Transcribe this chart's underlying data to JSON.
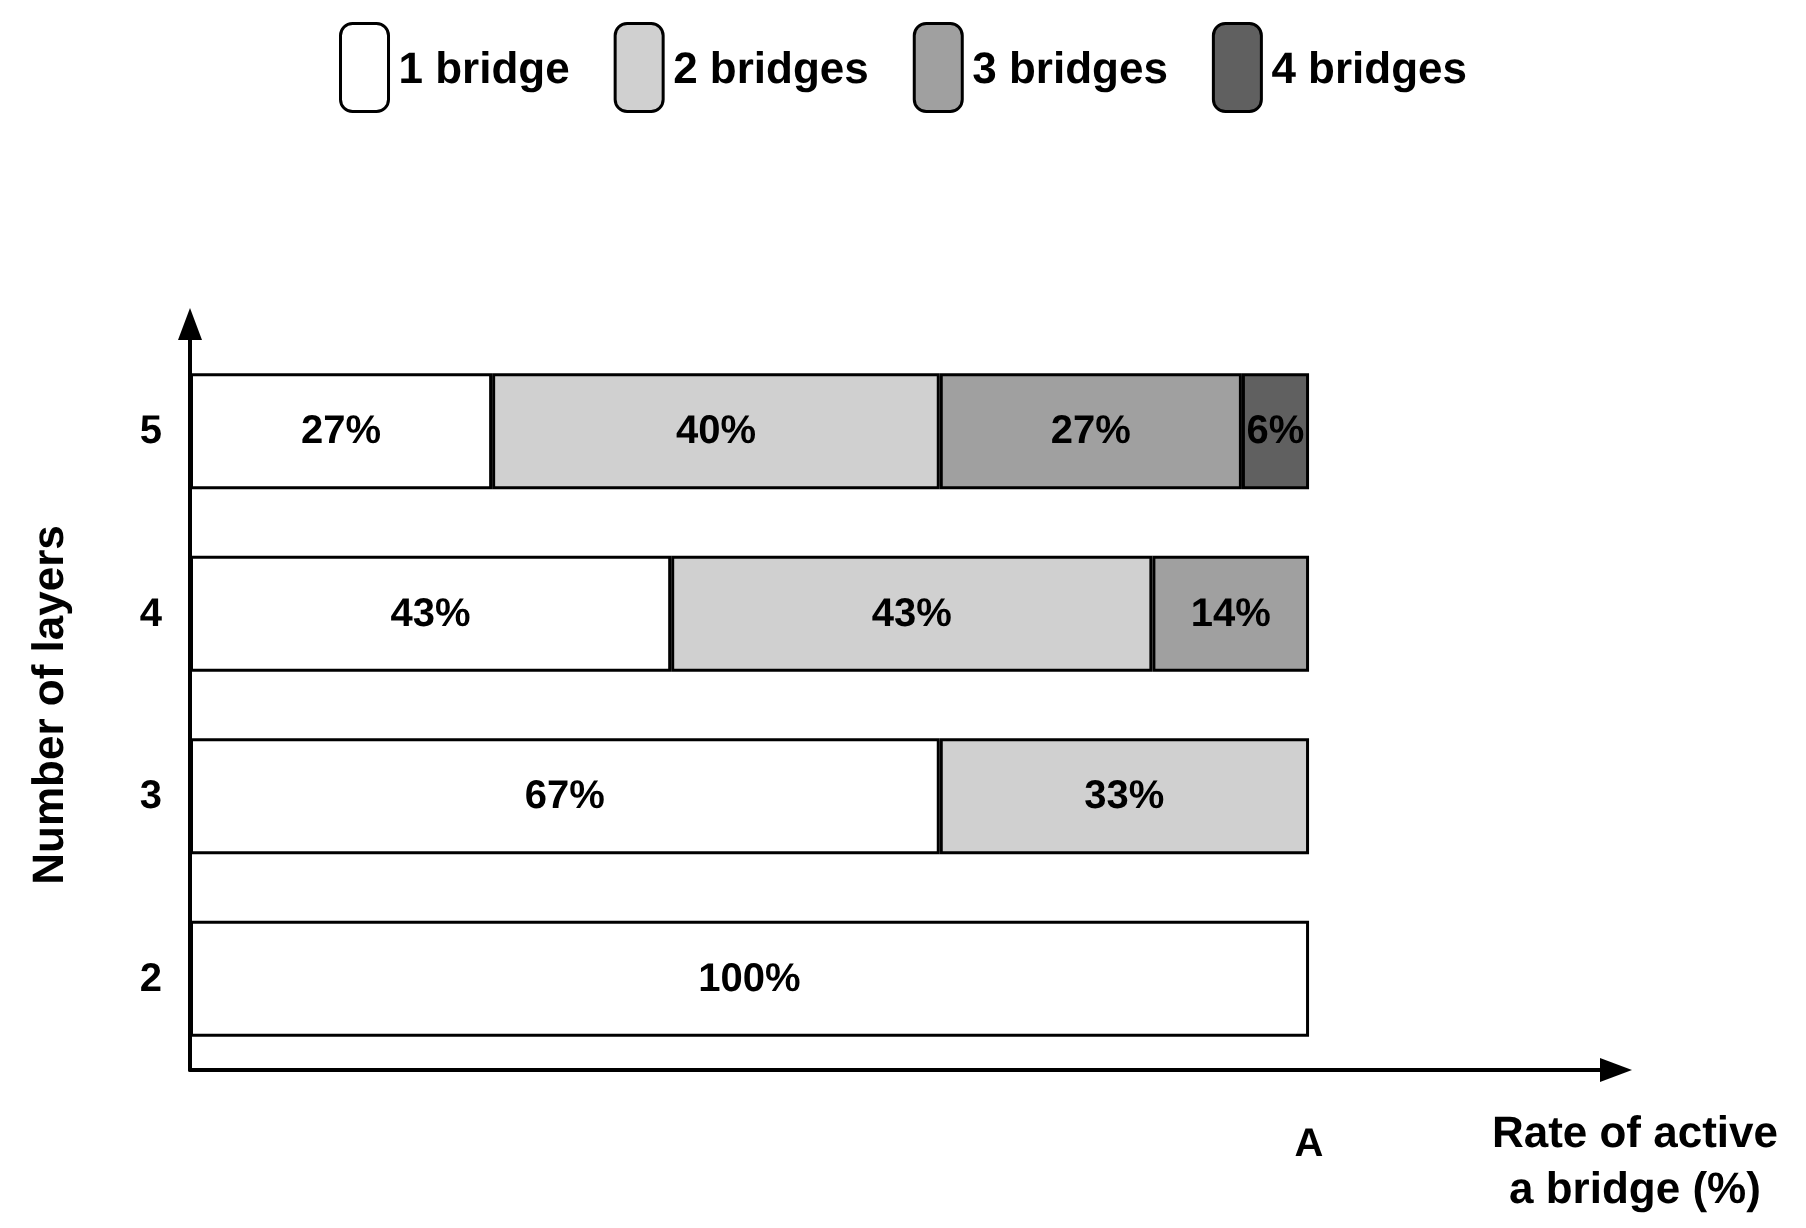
{
  "chart_data": {
    "type": "bar",
    "orientation": "horizontal",
    "stacked": true,
    "xlabel": "Rate of active\na bridge (%)",
    "ylabel": "Number of layers",
    "categories": [
      "5",
      "4",
      "3",
      "2"
    ],
    "series": [
      {
        "name": "1 bridge",
        "color": "#ffffff",
        "values": [
          27,
          43,
          67,
          100
        ],
        "value_labels": [
          "27%",
          "43%",
          "67%",
          "100%"
        ]
      },
      {
        "name": "2 bridges",
        "color": "#d0d0d0",
        "values": [
          40,
          43,
          33,
          null
        ],
        "value_labels": [
          "40%",
          "43%",
          "33%",
          null
        ]
      },
      {
        "name": "3 bridges",
        "color": "#a0a0a0",
        "values": [
          27,
          14,
          null,
          null
        ],
        "value_labels": [
          "27%",
          "14%",
          null,
          null
        ]
      },
      {
        "name": "4 bridges",
        "color": "#606060",
        "values": [
          6,
          null,
          null,
          null
        ],
        "value_labels": [
          "6%",
          null,
          null,
          null
        ]
      }
    ],
    "annotations": [
      "A"
    ],
    "legend": "top"
  }
}
